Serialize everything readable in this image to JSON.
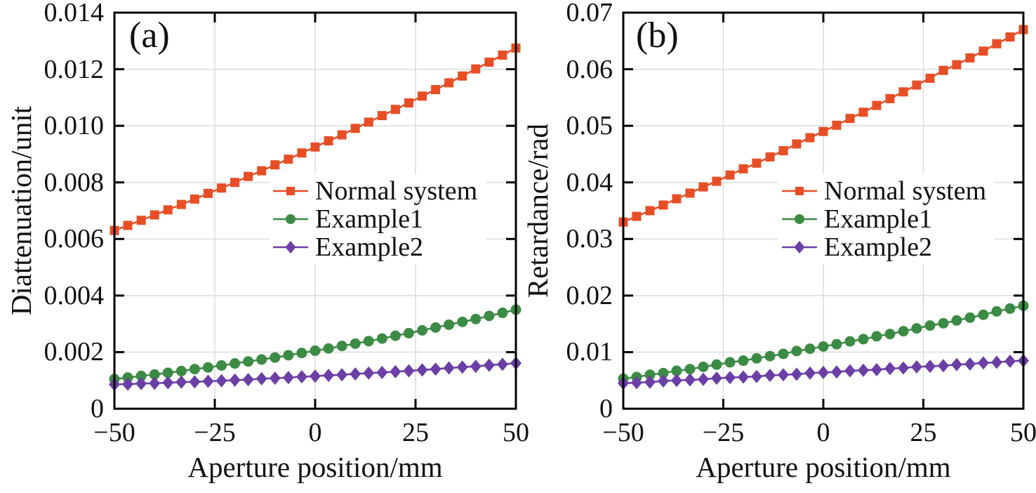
{
  "figure": {
    "background": "#ffffff",
    "axis_color": "#000000",
    "grid_color": "#dcdcdc",
    "text_color": "#111111"
  },
  "chart_data": [
    {
      "type": "line",
      "panel_label": "(a)",
      "xlabel": "Aperture position/mm",
      "ylabel": "Diattenuation/unit",
      "xlim": [
        -50,
        50
      ],
      "ylim": [
        0,
        0.014
      ],
      "grid": true,
      "legend_position": "right-center",
      "xticks": {
        "values": [
          -50,
          -25,
          0,
          25,
          50
        ],
        "labels": [
          "−50",
          "−25",
          "0",
          "25",
          "50"
        ]
      },
      "yticks": {
        "values": [
          0,
          0.002,
          0.004,
          0.006,
          0.008,
          0.01,
          0.012,
          0.014
        ],
        "labels": [
          "0",
          "0.002",
          "0.004",
          "0.006",
          "0.008",
          "0.010",
          "0.012",
          "0.014"
        ]
      },
      "x": [
        -50,
        -46.67,
        -43.33,
        -40,
        -36.67,
        -33.33,
        -30,
        -26.67,
        -23.33,
        -20,
        -16.67,
        -13.33,
        -10,
        -6.67,
        -3.33,
        0,
        3.33,
        6.67,
        10,
        13.33,
        16.67,
        20,
        23.33,
        26.67,
        30,
        33.33,
        36.67,
        40,
        43.33,
        46.67,
        50
      ],
      "series": [
        {
          "name": "Normal system",
          "marker": "square",
          "color": "#e74e26",
          "values": [
            0.0063,
            0.00648,
            0.00666,
            0.00685,
            0.00703,
            0.00722,
            0.00741,
            0.00761,
            0.0078,
            0.008,
            0.00821,
            0.00841,
            0.00862,
            0.00882,
            0.00904,
            0.00925,
            0.00947,
            0.00968,
            0.00991,
            0.01013,
            0.01036,
            0.01058,
            0.01081,
            0.01105,
            0.01128,
            0.01152,
            0.01176,
            0.01201,
            0.01225,
            0.0125,
            0.01275
          ]
        },
        {
          "name": "Example1",
          "marker": "circle",
          "color": "#3c8b45",
          "values": [
            0.00105,
            0.0011,
            0.00116,
            0.00121,
            0.00127,
            0.00133,
            0.0014,
            0.00146,
            0.00153,
            0.0016,
            0.00167,
            0.00174,
            0.00181,
            0.00189,
            0.00197,
            0.00205,
            0.00213,
            0.00222,
            0.0023,
            0.00239,
            0.00248,
            0.00258,
            0.00267,
            0.00277,
            0.00287,
            0.00297,
            0.00307,
            0.00317,
            0.00328,
            0.00339,
            0.0035
          ]
        },
        {
          "name": "Example2",
          "marker": "diamond",
          "color": "#6b3fa5",
          "values": [
            0.00086,
            0.00087,
            0.00089,
            0.0009,
            0.00092,
            0.00094,
            0.00095,
            0.00097,
            0.00099,
            0.00101,
            0.00103,
            0.00106,
            0.00108,
            0.0011,
            0.00113,
            0.00115,
            0.00118,
            0.0012,
            0.00123,
            0.00126,
            0.00128,
            0.00131,
            0.00134,
            0.00137,
            0.0014,
            0.00144,
            0.00147,
            0.0015,
            0.00154,
            0.00157,
            0.00161
          ]
        }
      ]
    },
    {
      "type": "line",
      "panel_label": "(b)",
      "xlabel": "Aperture position/mm",
      "ylabel": "Retardance/rad",
      "xlim": [
        -50,
        50
      ],
      "ylim": [
        0,
        0.07
      ],
      "grid": true,
      "legend_position": "right-center",
      "xticks": {
        "values": [
          -50,
          -25,
          0,
          25,
          50
        ],
        "labels": [
          "−50",
          "−25",
          "0",
          "25",
          "50"
        ]
      },
      "yticks": {
        "values": [
          0,
          0.01,
          0.02,
          0.03,
          0.04,
          0.05,
          0.06,
          0.07
        ],
        "labels": [
          "0",
          "0.01",
          "0.02",
          "0.03",
          "0.04",
          "0.05",
          "0.06",
          "0.07"
        ]
      },
      "x": [
        -50,
        -46.67,
        -43.33,
        -40,
        -36.67,
        -33.33,
        -30,
        -26.67,
        -23.33,
        -20,
        -16.67,
        -13.33,
        -10,
        -6.67,
        -3.33,
        0,
        3.33,
        6.67,
        10,
        13.33,
        16.67,
        20,
        23.33,
        26.67,
        30,
        33.33,
        36.67,
        40,
        43.33,
        46.67,
        50
      ],
      "series": [
        {
          "name": "Normal system",
          "marker": "square",
          "color": "#e74e26",
          "values": [
            0.033,
            0.034,
            0.035,
            0.036,
            0.0371,
            0.0381,
            0.0392,
            0.0402,
            0.0413,
            0.0424,
            0.0434,
            0.0445,
            0.0456,
            0.0468,
            0.0479,
            0.049,
            0.0501,
            0.0513,
            0.0524,
            0.0536,
            0.0548,
            0.056,
            0.0572,
            0.0584,
            0.0598,
            0.0608,
            0.062,
            0.0632,
            0.0645,
            0.0657,
            0.067
          ]
        },
        {
          "name": "Example1",
          "marker": "circle",
          "color": "#3c8b45",
          "values": [
            0.0053,
            0.0056,
            0.006,
            0.0063,
            0.0067,
            0.007,
            0.0074,
            0.0078,
            0.0082,
            0.0085,
            0.0089,
            0.0093,
            0.0097,
            0.0102,
            0.0106,
            0.011,
            0.0114,
            0.0119,
            0.0123,
            0.0128,
            0.0132,
            0.0137,
            0.0142,
            0.0147,
            0.0151,
            0.0156,
            0.0161,
            0.0166,
            0.0172,
            0.0177,
            0.0182
          ]
        },
        {
          "name": "Example2",
          "marker": "diamond",
          "color": "#6b3fa5",
          "values": [
            0.0045,
            0.0046,
            0.0047,
            0.0049,
            0.005,
            0.0051,
            0.0052,
            0.0054,
            0.0055,
            0.0056,
            0.0057,
            0.0059,
            0.006,
            0.0061,
            0.0063,
            0.0064,
            0.0065,
            0.0067,
            0.0068,
            0.0069,
            0.0071,
            0.0072,
            0.0074,
            0.0075,
            0.0076,
            0.0078,
            0.0079,
            0.0081,
            0.0082,
            0.0084,
            0.0085
          ]
        }
      ]
    }
  ]
}
